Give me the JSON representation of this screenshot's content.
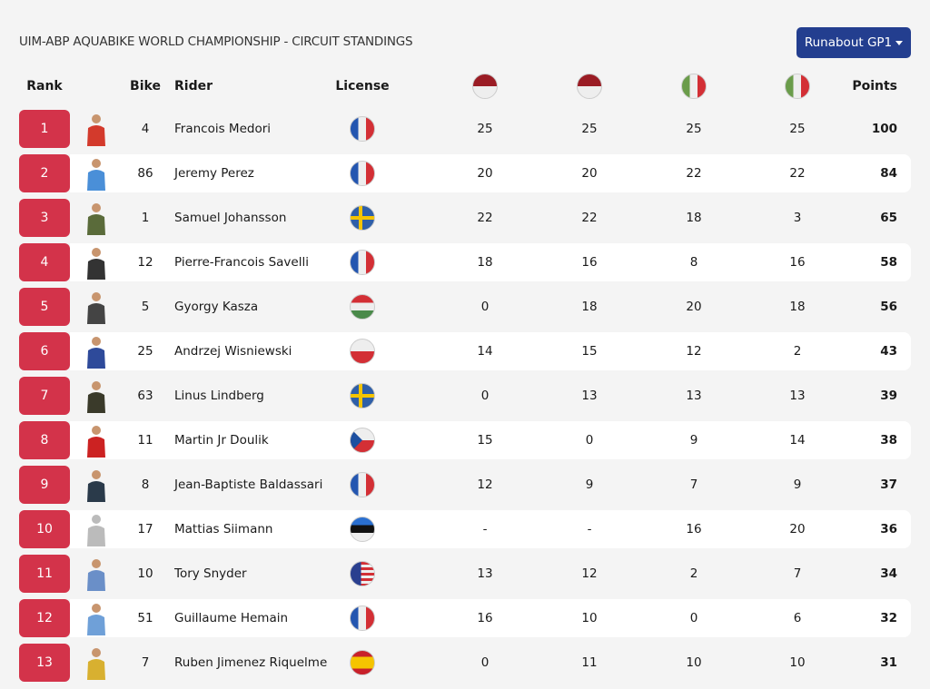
{
  "title": "UIM-ABP AQUABIKE WORLD CHAMPIONSHIP - CIRCUIT STANDINGS",
  "dropdown": {
    "label": "Runabout GP1"
  },
  "headers": {
    "rank": "Rank",
    "bike": "Bike",
    "rider": "Rider",
    "license": "License",
    "points": "Points",
    "races": [
      "indonesia",
      "indonesia",
      "italy",
      "italy"
    ]
  },
  "colors": {
    "accent": "#d3334a",
    "button": "#233e8f"
  },
  "rows": [
    {
      "rank": "1",
      "bike": "4",
      "rider": "Francois Medori",
      "license": "france",
      "r": [
        "25",
        "25",
        "25",
        "25"
      ],
      "points": "100",
      "shirt": "#d33a2c"
    },
    {
      "rank": "2",
      "bike": "86",
      "rider": "Jeremy Perez",
      "license": "france",
      "r": [
        "20",
        "20",
        "22",
        "22"
      ],
      "points": "84",
      "shirt": "#4a8fd8"
    },
    {
      "rank": "3",
      "bike": "1",
      "rider": "Samuel Johansson",
      "license": "sweden",
      "r": [
        "22",
        "22",
        "18",
        "3"
      ],
      "points": "65",
      "shirt": "#5a6b3a"
    },
    {
      "rank": "4",
      "bike": "12",
      "rider": "Pierre-Francois Savelli",
      "license": "france",
      "r": [
        "18",
        "16",
        "8",
        "16"
      ],
      "points": "58",
      "shirt": "#333"
    },
    {
      "rank": "5",
      "bike": "5",
      "rider": "Gyorgy Kasza",
      "license": "hungary",
      "r": [
        "0",
        "18",
        "20",
        "18"
      ],
      "points": "56",
      "shirt": "#444"
    },
    {
      "rank": "6",
      "bike": "25",
      "rider": "Andrzej Wisniewski",
      "license": "poland",
      "r": [
        "14",
        "15",
        "12",
        "2"
      ],
      "points": "43",
      "shirt": "#2e4a9a"
    },
    {
      "rank": "7",
      "bike": "63",
      "rider": "Linus Lindberg",
      "license": "sweden",
      "r": [
        "0",
        "13",
        "13",
        "13"
      ],
      "points": "39",
      "shirt": "#3a3a2a"
    },
    {
      "rank": "8",
      "bike": "11",
      "rider": "Martin Jr Doulik",
      "license": "czech",
      "r": [
        "15",
        "0",
        "9",
        "14"
      ],
      "points": "38",
      "shirt": "#c22"
    },
    {
      "rank": "9",
      "bike": "8",
      "rider": "Jean-Baptiste Baldassari",
      "license": "france",
      "r": [
        "12",
        "9",
        "7",
        "9"
      ],
      "points": "37",
      "shirt": "#2a3a4a"
    },
    {
      "rank": "10",
      "bike": "17",
      "rider": "Mattias Siimann",
      "license": "estonia",
      "r": [
        "-",
        "-",
        "16",
        "20"
      ],
      "points": "36",
      "shirt": "#bbb"
    },
    {
      "rank": "11",
      "bike": "10",
      "rider": "Tory Snyder",
      "license": "usa",
      "r": [
        "13",
        "12",
        "2",
        "7"
      ],
      "points": "34",
      "shirt": "#6a8fc8"
    },
    {
      "rank": "12",
      "bike": "51",
      "rider": "Guillaume Hemain",
      "license": "france",
      "r": [
        "16",
        "10",
        "0",
        "6"
      ],
      "points": "32",
      "shirt": "#6fa0d8"
    },
    {
      "rank": "13",
      "bike": "7",
      "rider": "Ruben Jimenez Riquelme",
      "license": "spain",
      "r": [
        "0",
        "11",
        "10",
        "10"
      ],
      "points": "31",
      "shirt": "#d8b030"
    }
  ]
}
